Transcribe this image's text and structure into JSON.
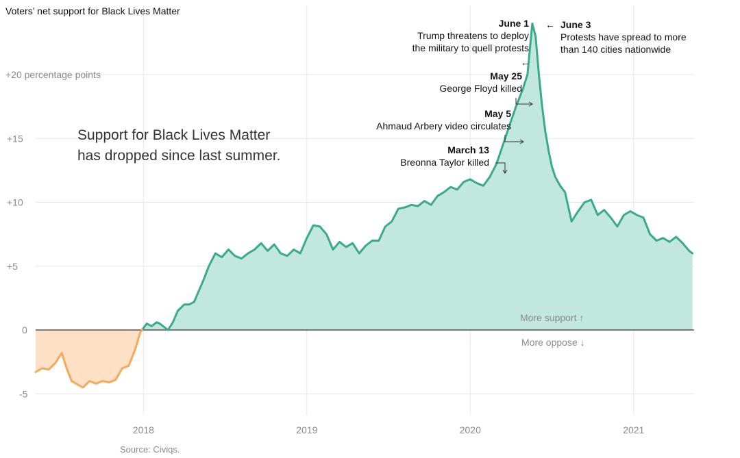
{
  "chart_data": {
    "type": "area",
    "title": "Voters’ net support for Black Lives Matter",
    "note": [
      "Support for Black Lives Matter",
      "has dropped since last summer."
    ],
    "source": "Source: Civiqs.",
    "y_ticks": [
      {
        "value": 20,
        "label": "+20 percentage points"
      },
      {
        "value": 15,
        "label": "+15"
      },
      {
        "value": 10,
        "label": "+10"
      },
      {
        "value": 5,
        "label": "+5"
      },
      {
        "value": 0,
        "label": "0"
      },
      {
        "value": -5,
        "label": "-5"
      }
    ],
    "x_ticks": [
      {
        "value": 2018,
        "label": "2018"
      },
      {
        "value": 2019,
        "label": "2019"
      },
      {
        "value": 2020,
        "label": "2020"
      },
      {
        "value": 2021,
        "label": "2021"
      }
    ],
    "xlim": [
      2017.34,
      2021.37
    ],
    "ylim": [
      -6.5,
      25.5
    ],
    "grid": true,
    "positive_label": "More support ↑",
    "negative_label": "More oppose ↓",
    "colors": {
      "positive_line": "#3aaa8c",
      "positive_fill": "#c2e7dc",
      "negative_line": "#f5a95a",
      "negative_fill": "#fde0c5",
      "zero_line": "#333333"
    },
    "series": [
      {
        "x": [
          2017.34,
          2017.38,
          2017.42,
          2017.46,
          2017.5,
          2017.53,
          2017.56,
          2017.6,
          2017.63,
          2017.67,
          2017.71,
          2017.75,
          2017.79,
          2017.83,
          2017.87,
          2017.91,
          2017.95,
          2017.98,
          2018.02,
          2018.05,
          2018.08,
          2018.1,
          2018.12,
          2018.15,
          2018.18,
          2018.21,
          2018.25,
          2018.28,
          2018.31,
          2018.33,
          2018.37,
          2018.4,
          2018.44,
          2018.48,
          2018.52,
          2018.56,
          2018.6,
          2018.64,
          2018.68,
          2018.72,
          2018.76,
          2018.8,
          2018.84,
          2018.88,
          2018.92,
          2018.96,
          2019.0,
          2019.04,
          2019.08,
          2019.12,
          2019.16,
          2019.2,
          2019.24,
          2019.28,
          2019.32,
          2019.36,
          2019.4,
          2019.44,
          2019.48,
          2019.52,
          2019.56,
          2019.6,
          2019.64,
          2019.68,
          2019.72,
          2019.76,
          2019.8,
          2019.84,
          2019.88,
          2019.92,
          2019.96,
          2020.0,
          2020.04,
          2020.08,
          2020.12,
          2020.16,
          2020.2,
          2020.24,
          2020.28,
          2020.32,
          2020.35,
          2020.38,
          2020.4,
          2020.42,
          2020.44,
          2020.46,
          2020.48,
          2020.5,
          2020.52,
          2020.55,
          2020.58,
          2020.62,
          2020.66,
          2020.7,
          2020.74,
          2020.78,
          2020.82,
          2020.86,
          2020.9,
          2020.94,
          2020.98,
          2021.02,
          2021.06,
          2021.1,
          2021.14,
          2021.18,
          2021.22,
          2021.26,
          2021.3,
          2021.34,
          2021.36
        ],
        "values": [
          -3.3,
          -3.0,
          -3.1,
          -2.6,
          -1.8,
          -3.0,
          -4.0,
          -4.3,
          -4.5,
          -4.0,
          -4.2,
          -4.0,
          -4.1,
          -3.9,
          -3.0,
          -2.8,
          -1.5,
          -0.2,
          0.5,
          0.3,
          0.6,
          0.5,
          0.3,
          0.0,
          0.6,
          1.5,
          2.0,
          2.0,
          2.2,
          2.8,
          4.0,
          5.0,
          6.0,
          5.7,
          6.3,
          5.8,
          5.6,
          6.0,
          6.3,
          6.8,
          6.2,
          6.7,
          6.0,
          5.8,
          6.3,
          6.0,
          7.2,
          8.2,
          8.1,
          7.5,
          6.3,
          6.9,
          6.5,
          6.8,
          6.0,
          6.6,
          7.0,
          7.0,
          8.1,
          8.5,
          9.5,
          9.6,
          9.8,
          9.7,
          10.1,
          9.8,
          10.5,
          10.8,
          11.2,
          11.0,
          11.6,
          11.8,
          11.5,
          11.3,
          12.0,
          13.0,
          14.5,
          16.0,
          17.5,
          18.8,
          20.0,
          24.0,
          23.0,
          20.0,
          17.5,
          15.5,
          14.0,
          12.8,
          12.0,
          11.3,
          10.8,
          8.5,
          9.3,
          10.0,
          10.2,
          9.0,
          9.4,
          8.8,
          8.1,
          9.0,
          9.3,
          9.0,
          8.8,
          7.5,
          7.0,
          7.2,
          6.9,
          7.3,
          6.8,
          6.2,
          6.0
        ]
      }
    ],
    "annotations": [
      {
        "date": "June 1",
        "text": [
          "Trump threatens to deploy",
          "the military to quell protests"
        ],
        "x": 2020.417,
        "y": 24.0,
        "arrow": "←"
      },
      {
        "date": "June 3",
        "text": [
          "Protests have spread to more",
          "than 140 cities nationwide"
        ],
        "x": 2020.422,
        "y": 24.0,
        "arrow": "←"
      },
      {
        "date": "May 25",
        "text": [
          "George Floyd killed"
        ],
        "x": 2020.395,
        "y": 17.7,
        "arrow": "↳"
      },
      {
        "date": "May 5",
        "text": [
          "Ahmaud Arbery video circulates"
        ],
        "x": 2020.34,
        "y": 14.7,
        "arrow": "↳"
      },
      {
        "date": "March 13",
        "text": [
          "Breonna Taylor killed"
        ],
        "x": 2020.2,
        "y": 12.0,
        "arrow": "↴"
      }
    ]
  }
}
